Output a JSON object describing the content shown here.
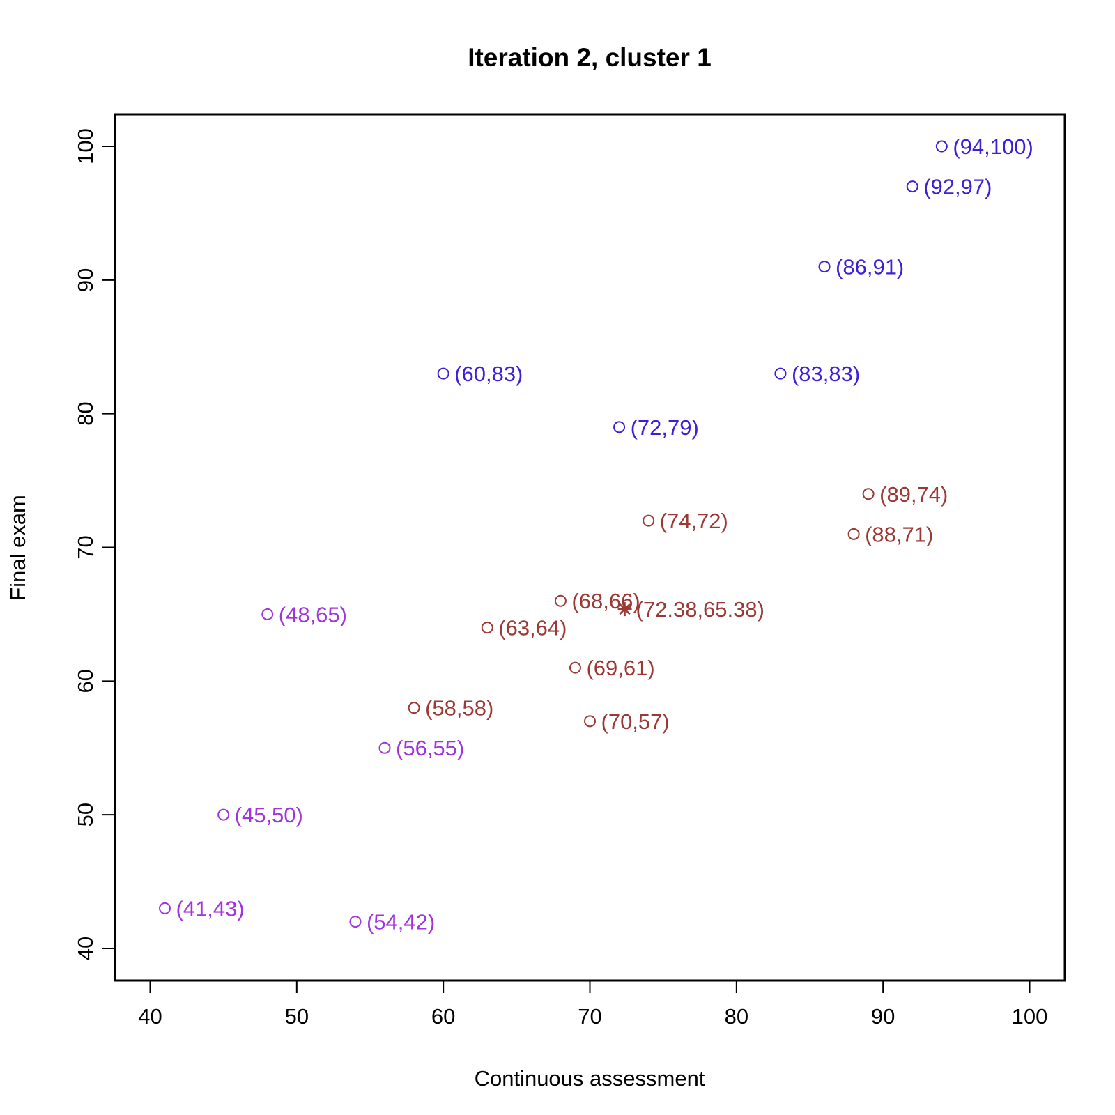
{
  "chart_data": {
    "type": "scatter",
    "title": "Iteration 2, cluster 1",
    "xlabel": "Continuous assessment",
    "ylabel": "Final exam",
    "xlim": [
      37.6,
      102.4
    ],
    "ylim": [
      37.6,
      102.4
    ],
    "x_ticks": [
      40,
      50,
      60,
      70,
      80,
      90,
      100
    ],
    "y_ticks": [
      40,
      50,
      60,
      70,
      80,
      90,
      100
    ],
    "x_tick_labels": [
      "40",
      "50",
      "60",
      "70",
      "80",
      "90",
      "100"
    ],
    "y_tick_labels": [
      "40",
      "50",
      "60",
      "70",
      "80",
      "90",
      "100"
    ],
    "grid": false,
    "legend": "none",
    "colors": {
      "blue": "#3d1fd9",
      "brown": "#9b3a35",
      "purple": "#a033dd"
    },
    "series": [
      {
        "color": "blue",
        "marker": "circle",
        "points": [
          {
            "x": 94,
            "y": 100,
            "label": "(94,100)"
          },
          {
            "x": 92,
            "y": 97,
            "label": "(92,97)"
          },
          {
            "x": 86,
            "y": 91,
            "label": "(86,91)"
          },
          {
            "x": 60,
            "y": 83,
            "label": "(60,83)"
          },
          {
            "x": 83,
            "y": 83,
            "label": "(83,83)"
          },
          {
            "x": 72,
            "y": 79,
            "label": "(72,79)"
          }
        ]
      },
      {
        "color": "brown",
        "marker": "circle",
        "points": [
          {
            "x": 89,
            "y": 74,
            "label": "(89,74)"
          },
          {
            "x": 74,
            "y": 72,
            "label": "(74,72)"
          },
          {
            "x": 88,
            "y": 71,
            "label": "(88,71)"
          },
          {
            "x": 68,
            "y": 66,
            "label": "(68,66)"
          },
          {
            "x": 63,
            "y": 64,
            "label": "(63,64)"
          },
          {
            "x": 69,
            "y": 61,
            "label": "(69,61)"
          },
          {
            "x": 58,
            "y": 58,
            "label": "(58,58)"
          },
          {
            "x": 70,
            "y": 57,
            "label": "(70,57)"
          }
        ]
      },
      {
        "color": "purple",
        "marker": "circle",
        "points": [
          {
            "x": 48,
            "y": 65,
            "label": "(48,65)"
          },
          {
            "x": 56,
            "y": 55,
            "label": "(56,55)"
          },
          {
            "x": 45,
            "y": 50,
            "label": "(45,50)"
          },
          {
            "x": 41,
            "y": 43,
            "label": "(41,43)"
          },
          {
            "x": 54,
            "y": 42,
            "label": "(54,42)"
          }
        ]
      },
      {
        "color": "brown",
        "marker": "asterisk",
        "points": [
          {
            "x": 72.38,
            "y": 65.38,
            "label": "(72.38,65.38)"
          }
        ]
      }
    ]
  }
}
